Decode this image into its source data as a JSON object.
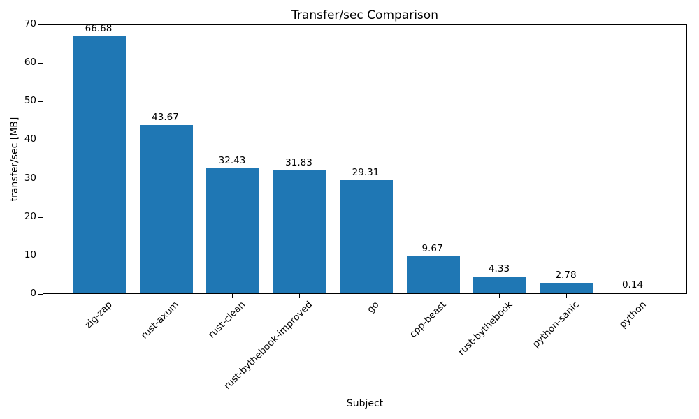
{
  "chart_data": {
    "type": "bar",
    "title": "Transfer/sec Comparison",
    "xlabel": "Subject",
    "ylabel": "transfer/sec [MB]",
    "categories": [
      "zig-zap",
      "rust-axum",
      "rust-clean",
      "rust-bythebook-improved",
      "go",
      "cpp-beast",
      "rust-bythebook",
      "python-sanic",
      "python"
    ],
    "values": [
      66.68,
      43.67,
      32.43,
      31.83,
      29.31,
      9.67,
      4.33,
      2.78,
      0.14
    ],
    "value_labels": [
      "66.68",
      "43.67",
      "32.43",
      "31.83",
      "29.31",
      "9.67",
      "4.33",
      "2.78",
      "0.14"
    ],
    "ylim": [
      0,
      70
    ],
    "yticks": [
      0,
      10,
      20,
      30,
      40,
      50,
      60,
      70
    ],
    "bar_color": "#1f77b4",
    "axis_color": "#000000",
    "xtick_rotation": 45,
    "grid": false,
    "legend": null
  }
}
